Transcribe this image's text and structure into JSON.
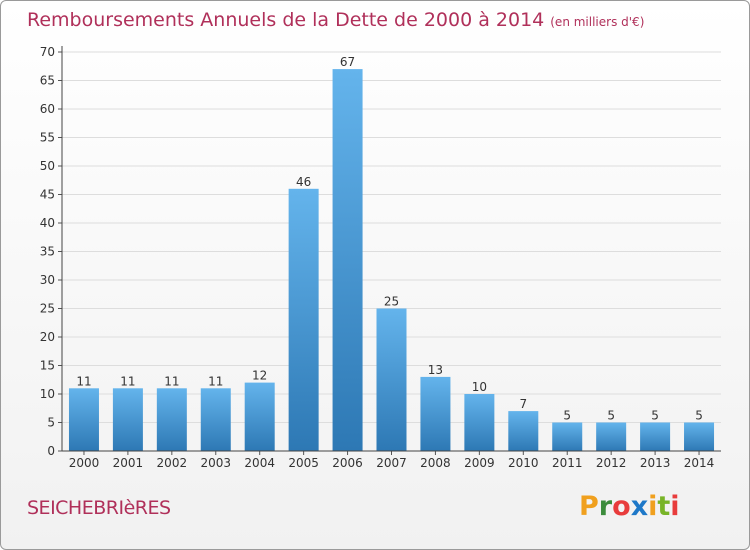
{
  "header": {
    "title": "Remboursements Annuels de la Dette de 2000 à 2014",
    "unit": "(en milliers d'€)"
  },
  "footer": {
    "town": "SEICHEBRIèRES",
    "logo_text": "Proxiti"
  },
  "colors": {
    "title": "#b0305a",
    "bar_top": "#64b4ec",
    "bar_bottom": "#2d78b4",
    "grid": "#dddddd",
    "logo_letters": [
      "#f0a01e",
      "#3c8c3c",
      "#e83c3c",
      "#1e78c8",
      "#f0a01e",
      "#78b428",
      "#e83c3c"
    ]
  },
  "chart_data": {
    "type": "bar",
    "title": "Remboursements Annuels de la Dette de 2000 à 2014",
    "subtitle": "(en milliers d'€)",
    "categories": [
      "2000",
      "2001",
      "2002",
      "2003",
      "2004",
      "2005",
      "2006",
      "2007",
      "2008",
      "2009",
      "2010",
      "2011",
      "2012",
      "2013",
      "2014"
    ],
    "values": [
      11,
      11,
      11,
      11,
      12,
      46,
      67,
      25,
      13,
      10,
      7,
      5,
      5,
      5,
      5
    ],
    "value_labels": [
      "11",
      "11",
      "11",
      "11",
      "12",
      "46",
      "67",
      "25",
      "13",
      "10",
      "7",
      "5",
      "5",
      "5",
      "5"
    ],
    "yticks": [
      0,
      5,
      10,
      15,
      20,
      25,
      30,
      35,
      40,
      45,
      50,
      55,
      60,
      65,
      70
    ],
    "ylim": [
      0,
      70
    ],
    "grid": true
  }
}
